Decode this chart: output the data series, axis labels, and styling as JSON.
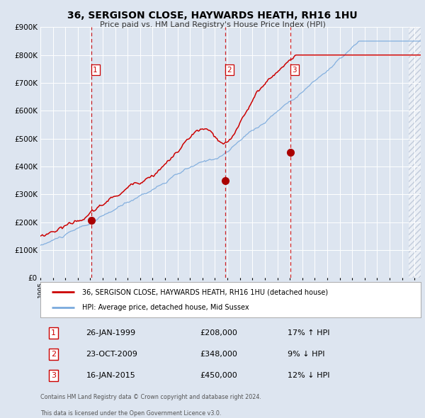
{
  "title": "36, SERGISON CLOSE, HAYWARDS HEATH, RH16 1HU",
  "subtitle": "Price paid vs. HM Land Registry's House Price Index (HPI)",
  "bg_color": "#dde5f0",
  "plot_bg_color": "#dde5f0",
  "grid_color": "#ffffff",
  "red_line_color": "#cc0000",
  "blue_line_color": "#7aaadd",
  "sale_dot_color": "#aa0000",
  "vline_color": "#cc0000",
  "ylabel_values": [
    0,
    100000,
    200000,
    300000,
    400000,
    500000,
    600000,
    700000,
    800000,
    900000
  ],
  "ylim": [
    0,
    900000
  ],
  "xlim_start": 1995.0,
  "xlim_end": 2025.5,
  "hatch_start": 2024.55,
  "sale1_year": 1999.07,
  "sale1_price": 208000,
  "sale1_label": "1",
  "sale2_year": 2009.81,
  "sale2_price": 348000,
  "sale2_label": "2",
  "sale3_year": 2015.04,
  "sale3_price": 450000,
  "sale3_label": "3",
  "legend_red_label": "36, SERGISON CLOSE, HAYWARDS HEATH, RH16 1HU (detached house)",
  "legend_blue_label": "HPI: Average price, detached house, Mid Sussex",
  "table_rows": [
    {
      "num": "1",
      "date": "26-JAN-1999",
      "price": "£208,000",
      "hpi": "17% ↑ HPI"
    },
    {
      "num": "2",
      "date": "23-OCT-2009",
      "price": "£348,000",
      "hpi": "9% ↓ HPI"
    },
    {
      "num": "3",
      "date": "16-JAN-2015",
      "price": "£450,000",
      "hpi": "12% ↓ HPI"
    }
  ],
  "footnote1": "Contains HM Land Registry data © Crown copyright and database right 2024.",
  "footnote2": "This data is licensed under the Open Government Licence v3.0."
}
